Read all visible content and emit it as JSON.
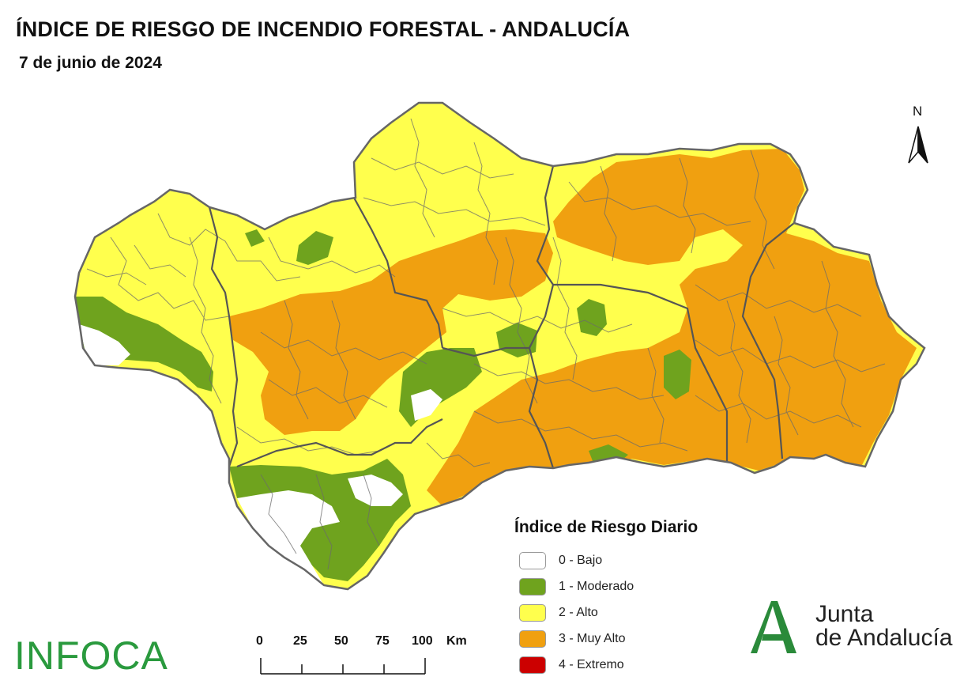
{
  "header": {
    "title": "ÍNDICE DE RIESGO DE INCENDIO FORESTAL - ANDALUCÍA",
    "date": "7 de junio de 2024"
  },
  "north_arrow": {
    "label": "N",
    "icon": "north-arrow-icon"
  },
  "legend": {
    "title": "Índice de Riesgo Diario",
    "items": [
      {
        "label": "0 - Bajo",
        "color": "#ffffff"
      },
      {
        "label": "1 - Moderado",
        "color": "#6fa31e"
      },
      {
        "label": "2 - Alto",
        "color": "#ffff4d"
      },
      {
        "label": "3 - Muy Alto",
        "color": "#f0a010"
      },
      {
        "label": "4 - Extremo",
        "color": "#cc0000"
      }
    ]
  },
  "scale_bar": {
    "ticks": [
      "0",
      "25",
      "50",
      "75",
      "100"
    ],
    "unit": "Km"
  },
  "branding": {
    "infoca": "INFOCA",
    "junta_line1": "Junta",
    "junta_line2": "de Andalucía",
    "junta_color": "#2a8a3a"
  },
  "map_colors": {
    "bajo": "#ffffff",
    "moderado": "#6fa31e",
    "alto": "#ffff4d",
    "muy_alto": "#f0a010",
    "border": "#6b6b6b"
  }
}
